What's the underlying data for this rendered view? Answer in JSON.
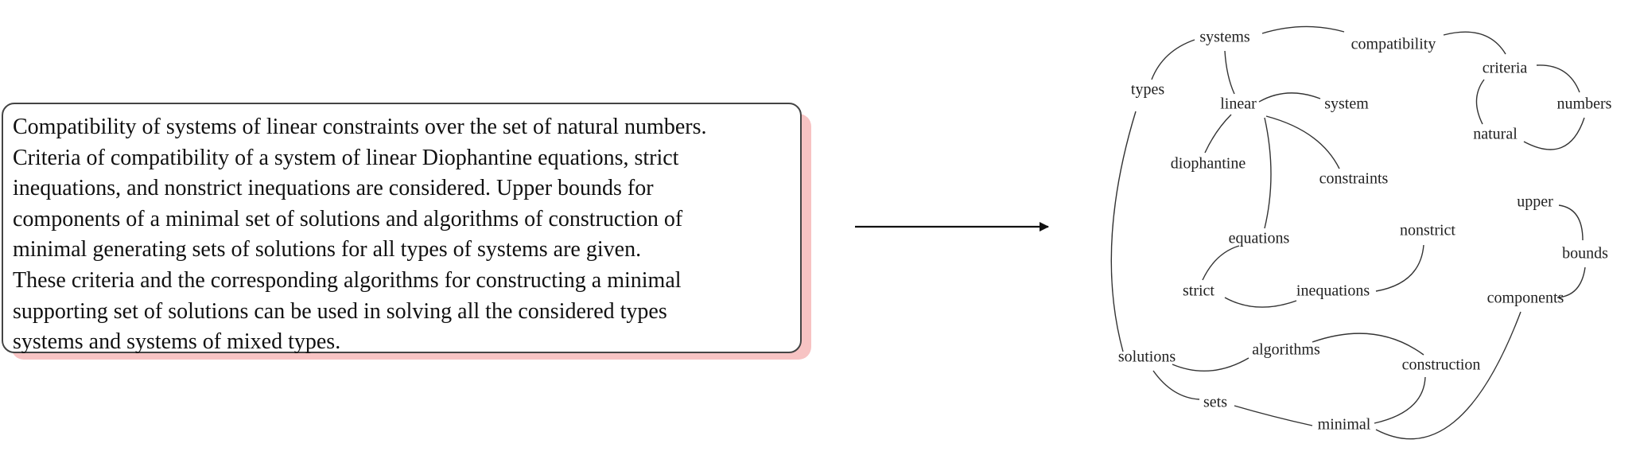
{
  "abstract": {
    "lines": [
      "Compatibility of systems of linear constraints over the set of natural numbers.",
      "Criteria of compatibility of a system of linear Diophantine equations, strict",
      "inequations, and nonstrict inequations are considered. Upper bounds for",
      "components of a minimal set of solutions and algorithms of construction of",
      "minimal generating sets of solutions for all types of systems are given.",
      "These criteria and the corresponding algorithms for constructing a minimal",
      "supporting set of solutions can be used in solving all the considered  types",
      "systems and systems of mixed types."
    ]
  },
  "graph": {
    "nodes": [
      {
        "id": "systems",
        "label": "systems"
      },
      {
        "id": "compatibility",
        "label": "compatibility"
      },
      {
        "id": "criteria",
        "label": "criteria"
      },
      {
        "id": "types",
        "label": "types"
      },
      {
        "id": "linear",
        "label": "linear"
      },
      {
        "id": "system",
        "label": "system"
      },
      {
        "id": "numbers",
        "label": "numbers"
      },
      {
        "id": "natural",
        "label": "natural"
      },
      {
        "id": "diophantine",
        "label": "diophantine"
      },
      {
        "id": "constraints",
        "label": "constraints"
      },
      {
        "id": "upper",
        "label": "upper"
      },
      {
        "id": "nonstrict",
        "label": "nonstrict"
      },
      {
        "id": "equations",
        "label": "equations"
      },
      {
        "id": "bounds",
        "label": "bounds"
      },
      {
        "id": "strict",
        "label": "strict"
      },
      {
        "id": "inequations",
        "label": "inequations"
      },
      {
        "id": "components",
        "label": "components"
      },
      {
        "id": "solutions",
        "label": "solutions"
      },
      {
        "id": "algorithms",
        "label": "algorithms"
      },
      {
        "id": "construction",
        "label": "construction"
      },
      {
        "id": "sets",
        "label": "sets"
      },
      {
        "id": "minimal",
        "label": "minimal"
      }
    ],
    "edges": [
      [
        "systems",
        "compatibility"
      ],
      [
        "compatibility",
        "criteria"
      ],
      [
        "systems",
        "types"
      ],
      [
        "systems",
        "linear"
      ],
      [
        "linear",
        "system"
      ],
      [
        "linear",
        "diophantine"
      ],
      [
        "linear",
        "constraints"
      ],
      [
        "linear",
        "equations"
      ],
      [
        "criteria",
        "numbers"
      ],
      [
        "criteria",
        "natural"
      ],
      [
        "natural",
        "numbers"
      ],
      [
        "upper",
        "bounds"
      ],
      [
        "bounds",
        "components"
      ],
      [
        "equations",
        "strict"
      ],
      [
        "strict",
        "inequations"
      ],
      [
        "inequations",
        "nonstrict"
      ],
      [
        "types",
        "solutions"
      ],
      [
        "solutions",
        "algorithms"
      ],
      [
        "solutions",
        "sets"
      ],
      [
        "algorithms",
        "construction"
      ],
      [
        "construction",
        "minimal"
      ],
      [
        "sets",
        "minimal"
      ],
      [
        "minimal",
        "components"
      ]
    ]
  }
}
